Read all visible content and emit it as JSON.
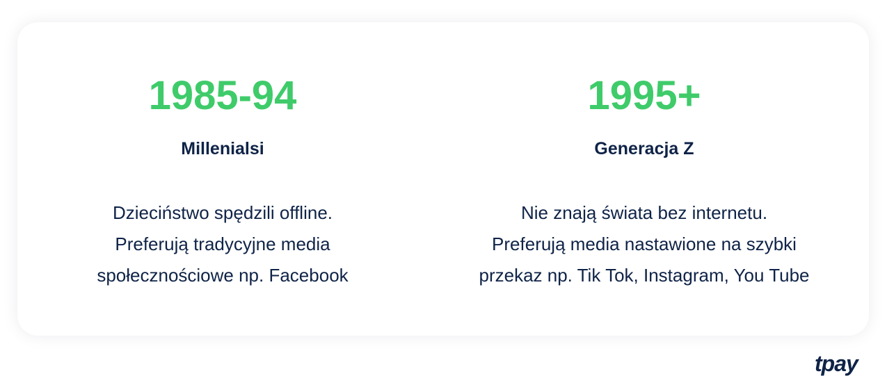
{
  "colors": {
    "accent": "#3fcb6a",
    "text": "#0f2347"
  },
  "columns": [
    {
      "year": "1985-94",
      "title": "Millenialsi",
      "lines": [
        "Dzieciństwo spędzili offline.",
        "Preferują tradycyjne media",
        "społecznościowe np. Facebook"
      ]
    },
    {
      "year": "1995+",
      "title": "Generacja Z",
      "lines": [
        "Nie znają świata bez internetu.",
        "Preferują media nastawione na szybki",
        "przekaz np. Tik Tok, Instagram, You Tube"
      ]
    }
  ],
  "logo": "tpay"
}
